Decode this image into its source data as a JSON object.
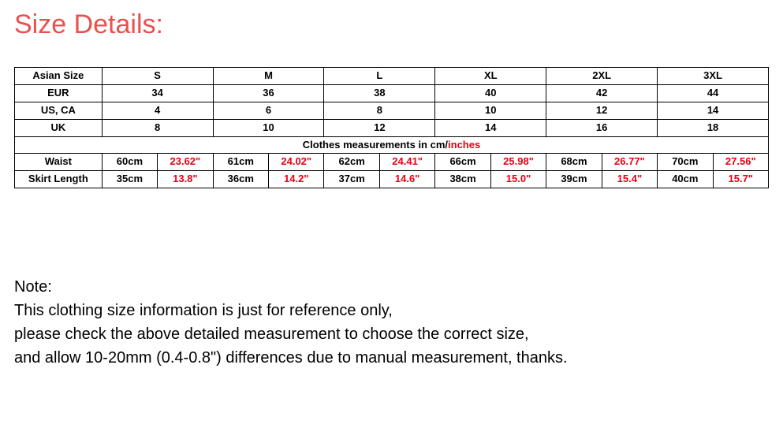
{
  "title": {
    "text": "Size Details:",
    "color": "#e8514f"
  },
  "sizes": [
    "S",
    "M",
    "L",
    "XL",
    "2XL",
    "3XL"
  ],
  "region_rows": [
    {
      "label": "Asian Size",
      "values": [
        "S",
        "M",
        "L",
        "XL",
        "2XL",
        "3XL"
      ]
    },
    {
      "label": "EUR",
      "values": [
        "34",
        "36",
        "38",
        "40",
        "42",
        "44"
      ]
    },
    {
      "label": "US, CA",
      "values": [
        "4",
        "6",
        "8",
        "10",
        "12",
        "14"
      ]
    },
    {
      "label": "UK",
      "values": [
        "8",
        "10",
        "12",
        "14",
        "16",
        "18"
      ]
    }
  ],
  "measure_header": {
    "prefix": "Clothes measurements in cm/",
    "suffix": "inches"
  },
  "measure_rows": [
    {
      "label": "Waist",
      "pairs": [
        [
          "60cm",
          "23.62\""
        ],
        [
          "61cm",
          "24.02\""
        ],
        [
          "62cm",
          "24.41\""
        ],
        [
          "66cm",
          "25.98\""
        ],
        [
          "68cm",
          "26.77\""
        ],
        [
          "70cm",
          "27.56\""
        ]
      ]
    },
    {
      "label": "Skirt Length",
      "pairs": [
        [
          "35cm",
          "13.8\""
        ],
        [
          "36cm",
          "14.2\""
        ],
        [
          "37cm",
          "14.6\""
        ],
        [
          "38cm",
          "15.0\""
        ],
        [
          "39cm",
          "15.4\""
        ],
        [
          "40cm",
          "15.7\""
        ]
      ]
    }
  ],
  "inches_color": "#e60012",
  "note": {
    "heading": "Note:",
    "lines": [
      "This clothing size information is just for reference only,",
      "please check the above detailed measurement to choose the correct size,",
      "and allow 10-20mm (0.4-0.8\") differences due to manual measurement, thanks."
    ]
  },
  "col_widths": {
    "label": 110,
    "wide": 141,
    "half": 70
  }
}
